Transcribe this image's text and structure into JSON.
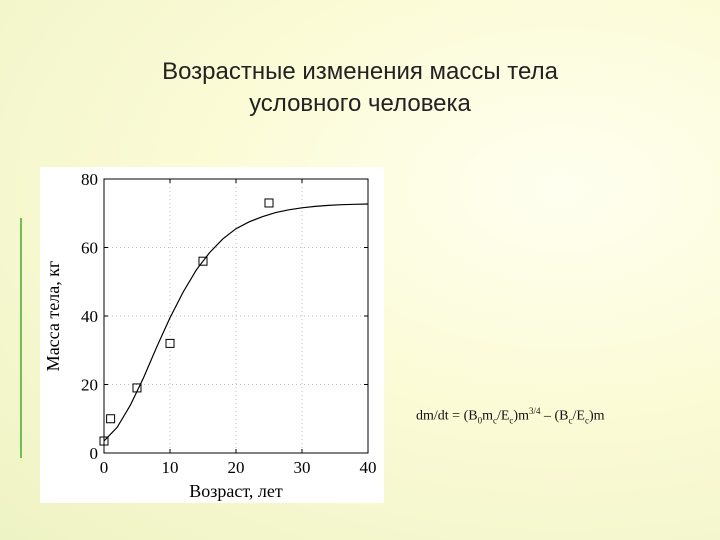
{
  "slide": {
    "title_line1": "Возрастные изменения массы тела",
    "title_line2": "условного человека",
    "accent_color": "#6fbf56"
  },
  "formula": {
    "lhs": "dm/dt = (B",
    "sub_0": "0",
    "m": "m",
    "sub_c1": "c",
    "slash1": "/E",
    "sub_c2": "c",
    "close1": ")m",
    "exp": "3/4",
    "minus": " – (B",
    "sub_c3": "c",
    "slash2": "/E",
    "sub_c4": "c",
    "close2": ")m"
  },
  "chart_data": {
    "type": "scatter",
    "title": "",
    "xlabel": "Возраст, лет",
    "ylabel": "Масса тела, кг",
    "xlim": [
      0,
      40
    ],
    "ylim": [
      0,
      80
    ],
    "xticks": [
      0,
      10,
      20,
      30,
      40
    ],
    "yticks": [
      0,
      20,
      40,
      60,
      80
    ],
    "grid": true,
    "series": [
      {
        "kind": "points",
        "marker": "square",
        "x": [
          0,
          1,
          5,
          10,
          15,
          25
        ],
        "y": [
          3.5,
          10,
          19,
          32,
          56,
          73
        ]
      },
      {
        "kind": "line",
        "x": [
          0,
          2,
          4,
          6,
          8,
          10,
          12,
          14,
          16,
          18,
          20,
          22,
          24,
          26,
          28,
          30,
          32,
          34,
          36,
          38,
          40
        ],
        "y": [
          3.5,
          7.5,
          14,
          22,
          31,
          39.5,
          47,
          53.5,
          58.5,
          62.5,
          65.5,
          67.5,
          69,
          70.2,
          71,
          71.6,
          72,
          72.3,
          72.5,
          72.6,
          72.7
        ]
      }
    ],
    "colors": {
      "axis": "#000000",
      "grid": "#bdbdbd",
      "line": "#000000"
    }
  }
}
